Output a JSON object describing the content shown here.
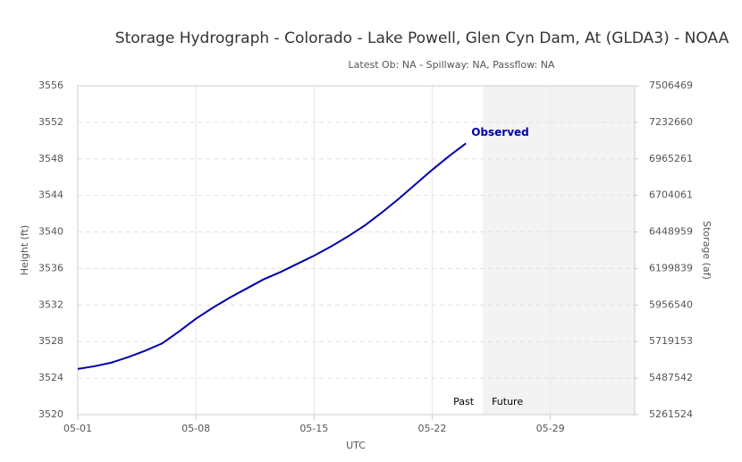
{
  "chart_data": {
    "type": "line",
    "title": "Storage Hydrograph - Colorado - Lake Powell, Glen Cyn Dam, At (GLDA3) - NOAA",
    "subtitle": "Latest Ob: NA - Spillway: NA, Passflow: NA",
    "x_label": "UTC",
    "y_label": "Height (ft)",
    "y2_label": "Storage (af)",
    "x": [
      "05-01",
      "05-02",
      "05-03",
      "05-04",
      "05-05",
      "05-06",
      "05-07",
      "05-08",
      "05-09",
      "05-10",
      "05-11",
      "05-12",
      "05-13",
      "05-14",
      "05-15",
      "05-16",
      "05-17",
      "05-18",
      "05-19",
      "05-20",
      "05-21",
      "05-22",
      "05-23",
      "05-24"
    ],
    "series": [
      {
        "name": "Observed",
        "color": "#0000aa",
        "values": [
          3525.0,
          3525.3,
          3525.7,
          3526.3,
          3527.0,
          3527.8,
          3529.1,
          3530.5,
          3531.7,
          3532.8,
          3533.8,
          3534.8,
          3535.6,
          3536.5,
          3537.4,
          3538.4,
          3539.5,
          3540.7,
          3542.1,
          3543.6,
          3545.2,
          3546.8,
          3548.3,
          3549.7
        ]
      }
    ],
    "xlim": [
      "05-01",
      "06-03"
    ],
    "xticks": [
      "05-01",
      "05-08",
      "05-15",
      "05-22",
      "05-29"
    ],
    "ylim": [
      3520,
      3556
    ],
    "yticks": [
      3520,
      3524,
      3528,
      3532,
      3536,
      3540,
      3544,
      3548,
      3552,
      3556
    ],
    "y2lim": [
      5261524,
      7506469
    ],
    "y2ticks": [
      5261524,
      5487542,
      5719153,
      5956540,
      6199839,
      6448959,
      6704061,
      6965261,
      7232660,
      7506469
    ],
    "future_start": "05-25",
    "past_label": "Past",
    "future_label": "Future",
    "grid": true
  }
}
